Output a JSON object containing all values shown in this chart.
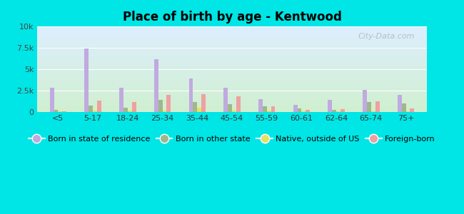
{
  "title": "Place of birth by age - Kentwood",
  "categories": [
    "<5",
    "5-17",
    "18-24",
    "25-34",
    "35-44",
    "45-54",
    "55-59",
    "60-61",
    "62-64",
    "65-74",
    "75+"
  ],
  "series": {
    "Born in state of residence": [
      2800,
      7400,
      2800,
      6200,
      3900,
      2800,
      1500,
      800,
      1400,
      2600,
      2000
    ],
    "Born in other state": [
      200,
      700,
      500,
      1400,
      1100,
      900,
      600,
      400,
      200,
      1100,
      1000
    ],
    "Native, outside of US": [
      80,
      100,
      100,
      150,
      450,
      100,
      100,
      80,
      80,
      80,
      80
    ],
    "Foreign-born": [
      80,
      1300,
      1100,
      2000,
      2100,
      1800,
      600,
      200,
      300,
      1200,
      400
    ]
  },
  "colors": {
    "Born in state of residence": "#c0aae0",
    "Born in other state": "#a0b888",
    "Native, outside of US": "#e8e060",
    "Foreign-born": "#f0a0a0"
  },
  "ylim": [
    0,
    10000
  ],
  "yticks": [
    0,
    2500,
    5000,
    7500,
    10000
  ],
  "ytick_labels": [
    "0",
    "2.5k",
    "5k",
    "7.5k",
    "10k"
  ],
  "background_color": "#00e5e5",
  "plot_bg_top": "#ddeeff",
  "plot_bg_bottom": "#d0f0d0",
  "legend_labels": [
    "Born in state of residence",
    "Born in other state",
    "Native, outside of US",
    "Foreign-born"
  ],
  "bar_width": 0.12,
  "watermark": "City-Data.com"
}
